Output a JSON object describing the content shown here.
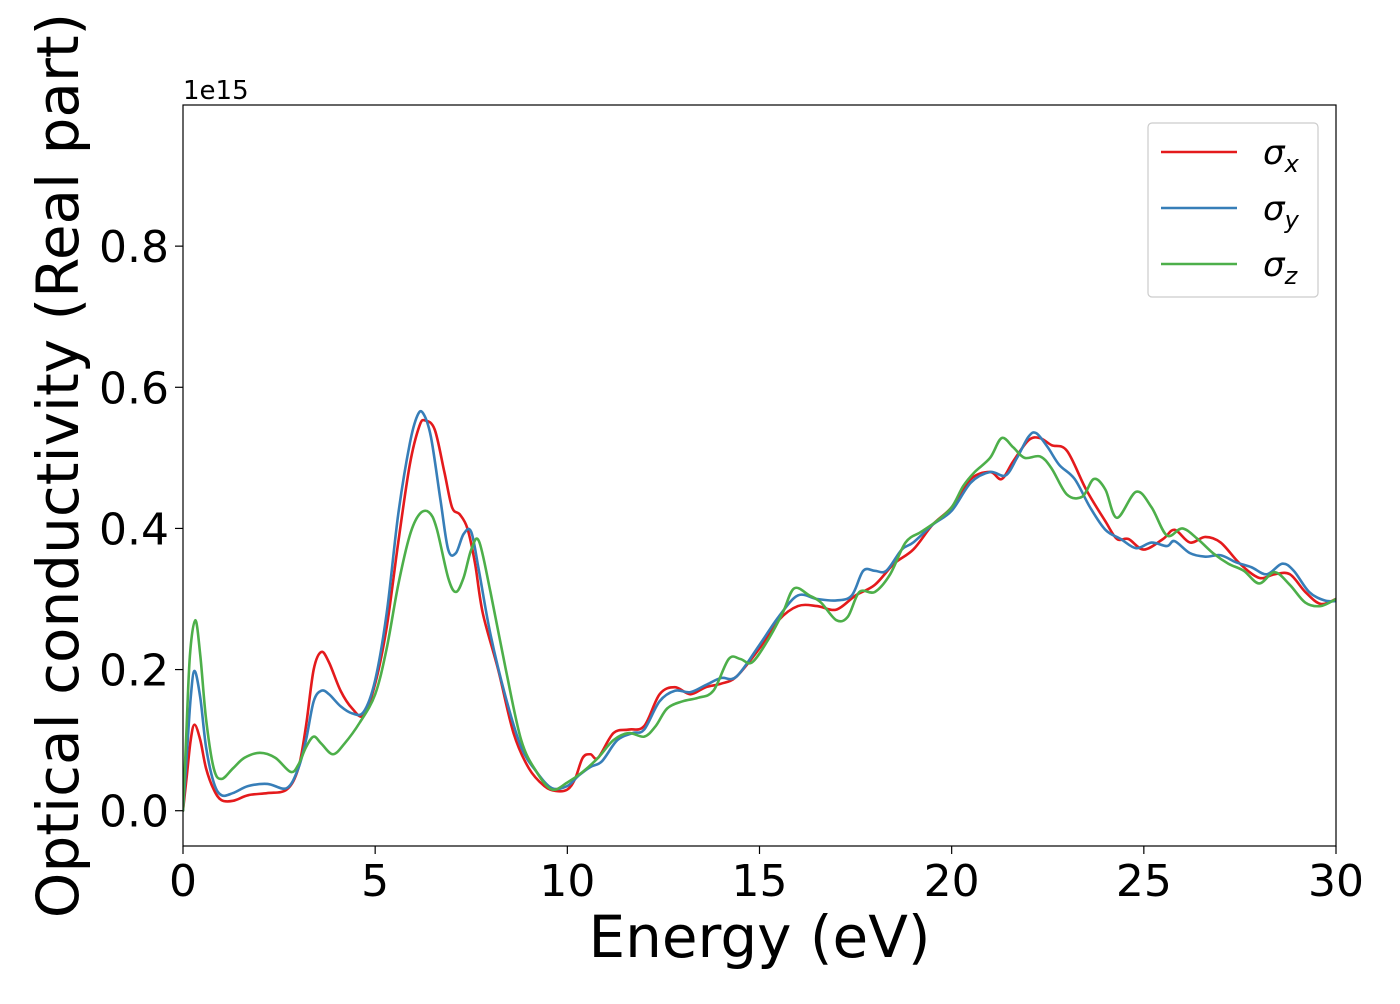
{
  "chart_data": {
    "type": "line",
    "xlabel": "Energy (eV)",
    "ylabel": "Optical conductivity (Real part)",
    "offset_label": "1e15",
    "xlim": [
      0,
      30
    ],
    "ylim": [
      -0.05,
      1.0
    ],
    "xticks": [
      0,
      5,
      10,
      15,
      20,
      25,
      30
    ],
    "xtick_labels": [
      "0",
      "5",
      "10",
      "15",
      "20",
      "25",
      "30"
    ],
    "yticks": [
      0.0,
      0.2,
      0.4,
      0.6,
      0.8
    ],
    "ytick_labels": [
      "0.0",
      "0.2",
      "0.4",
      "0.6",
      "0.8"
    ],
    "grid": false,
    "legend_position": "top-right",
    "series": [
      {
        "name": "σx",
        "label_base": "σ",
        "label_sub": "x",
        "color": "#e41a1c",
        "points": [
          [
            0,
            0.0
          ],
          [
            0.1,
            0.05
          ],
          [
            0.2,
            0.1
          ],
          [
            0.3,
            0.122
          ],
          [
            0.45,
            0.1
          ],
          [
            0.6,
            0.06
          ],
          [
            0.8,
            0.03
          ],
          [
            1.0,
            0.015
          ],
          [
            1.3,
            0.014
          ],
          [
            1.7,
            0.022
          ],
          [
            2.2,
            0.025
          ],
          [
            2.7,
            0.03
          ],
          [
            3.0,
            0.06
          ],
          [
            3.2,
            0.12
          ],
          [
            3.4,
            0.2
          ],
          [
            3.6,
            0.225
          ],
          [
            3.8,
            0.21
          ],
          [
            4.1,
            0.17
          ],
          [
            4.4,
            0.145
          ],
          [
            4.7,
            0.135
          ],
          [
            5.0,
            0.18
          ],
          [
            5.3,
            0.26
          ],
          [
            5.6,
            0.38
          ],
          [
            5.9,
            0.49
          ],
          [
            6.15,
            0.545
          ],
          [
            6.3,
            0.553
          ],
          [
            6.55,
            0.54
          ],
          [
            6.8,
            0.48
          ],
          [
            7.0,
            0.43
          ],
          [
            7.2,
            0.42
          ],
          [
            7.4,
            0.4
          ],
          [
            7.6,
            0.35
          ],
          [
            7.8,
            0.28
          ],
          [
            8.2,
            0.2
          ],
          [
            8.6,
            0.11
          ],
          [
            9.0,
            0.06
          ],
          [
            9.4,
            0.035
          ],
          [
            9.7,
            0.028
          ],
          [
            10.0,
            0.03
          ],
          [
            10.2,
            0.045
          ],
          [
            10.4,
            0.075
          ],
          [
            10.6,
            0.08
          ],
          [
            10.8,
            0.075
          ],
          [
            11.2,
            0.11
          ],
          [
            11.6,
            0.115
          ],
          [
            12.0,
            0.12
          ],
          [
            12.4,
            0.165
          ],
          [
            12.8,
            0.175
          ],
          [
            13.2,
            0.165
          ],
          [
            13.6,
            0.175
          ],
          [
            14.0,
            0.18
          ],
          [
            14.4,
            0.19
          ],
          [
            15.0,
            0.23
          ],
          [
            15.5,
            0.27
          ],
          [
            16.0,
            0.29
          ],
          [
            16.5,
            0.29
          ],
          [
            17.0,
            0.285
          ],
          [
            17.5,
            0.305
          ],
          [
            18.0,
            0.32
          ],
          [
            18.5,
            0.35
          ],
          [
            19.0,
            0.37
          ],
          [
            19.5,
            0.405
          ],
          [
            20.0,
            0.43
          ],
          [
            20.5,
            0.47
          ],
          [
            21.0,
            0.48
          ],
          [
            21.3,
            0.47
          ],
          [
            21.6,
            0.495
          ],
          [
            22.0,
            0.525
          ],
          [
            22.3,
            0.528
          ],
          [
            22.6,
            0.518
          ],
          [
            23.0,
            0.51
          ],
          [
            23.5,
            0.455
          ],
          [
            24.0,
            0.41
          ],
          [
            24.3,
            0.385
          ],
          [
            24.6,
            0.385
          ],
          [
            25.0,
            0.37
          ],
          [
            25.5,
            0.385
          ],
          [
            25.8,
            0.398
          ],
          [
            26.2,
            0.38
          ],
          [
            26.6,
            0.388
          ],
          [
            27.0,
            0.38
          ],
          [
            27.5,
            0.35
          ],
          [
            28.0,
            0.33
          ],
          [
            28.4,
            0.335
          ],
          [
            28.8,
            0.335
          ],
          [
            29.2,
            0.31
          ],
          [
            29.6,
            0.293
          ],
          [
            30.0,
            0.3
          ]
        ]
      },
      {
        "name": "σy",
        "label_base": "σ",
        "label_sub": "y",
        "color": "#377eb8",
        "points": [
          [
            0,
            0.0
          ],
          [
            0.1,
            0.08
          ],
          [
            0.2,
            0.16
          ],
          [
            0.3,
            0.198
          ],
          [
            0.45,
            0.16
          ],
          [
            0.6,
            0.09
          ],
          [
            0.8,
            0.04
          ],
          [
            1.0,
            0.022
          ],
          [
            1.3,
            0.025
          ],
          [
            1.7,
            0.035
          ],
          [
            2.2,
            0.038
          ],
          [
            2.7,
            0.032
          ],
          [
            3.0,
            0.06
          ],
          [
            3.2,
            0.1
          ],
          [
            3.4,
            0.155
          ],
          [
            3.6,
            0.17
          ],
          [
            3.8,
            0.165
          ],
          [
            4.1,
            0.148
          ],
          [
            4.4,
            0.138
          ],
          [
            4.7,
            0.14
          ],
          [
            5.0,
            0.185
          ],
          [
            5.3,
            0.28
          ],
          [
            5.6,
            0.42
          ],
          [
            5.9,
            0.52
          ],
          [
            6.1,
            0.56
          ],
          [
            6.25,
            0.563
          ],
          [
            6.45,
            0.53
          ],
          [
            6.7,
            0.44
          ],
          [
            6.9,
            0.37
          ],
          [
            7.1,
            0.365
          ],
          [
            7.3,
            0.392
          ],
          [
            7.5,
            0.395
          ],
          [
            7.7,
            0.34
          ],
          [
            8.0,
            0.25
          ],
          [
            8.4,
            0.16
          ],
          [
            8.8,
            0.09
          ],
          [
            9.2,
            0.055
          ],
          [
            9.6,
            0.032
          ],
          [
            10.0,
            0.035
          ],
          [
            10.3,
            0.05
          ],
          [
            10.6,
            0.062
          ],
          [
            10.9,
            0.07
          ],
          [
            11.3,
            0.1
          ],
          [
            11.7,
            0.11
          ],
          [
            12.0,
            0.115
          ],
          [
            12.4,
            0.155
          ],
          [
            12.8,
            0.17
          ],
          [
            13.2,
            0.168
          ],
          [
            13.6,
            0.178
          ],
          [
            14.0,
            0.188
          ],
          [
            14.4,
            0.19
          ],
          [
            15.0,
            0.235
          ],
          [
            15.5,
            0.275
          ],
          [
            16.0,
            0.305
          ],
          [
            16.5,
            0.3
          ],
          [
            17.0,
            0.298
          ],
          [
            17.4,
            0.305
          ],
          [
            17.7,
            0.34
          ],
          [
            18.0,
            0.34
          ],
          [
            18.3,
            0.34
          ],
          [
            18.7,
            0.37
          ],
          [
            19.0,
            0.38
          ],
          [
            19.5,
            0.405
          ],
          [
            20.0,
            0.425
          ],
          [
            20.5,
            0.465
          ],
          [
            21.0,
            0.48
          ],
          [
            21.4,
            0.475
          ],
          [
            21.7,
            0.5
          ],
          [
            22.0,
            0.53
          ],
          [
            22.2,
            0.535
          ],
          [
            22.5,
            0.515
          ],
          [
            22.8,
            0.49
          ],
          [
            23.2,
            0.47
          ],
          [
            23.6,
            0.43
          ],
          [
            24.0,
            0.398
          ],
          [
            24.4,
            0.385
          ],
          [
            24.8,
            0.372
          ],
          [
            25.2,
            0.38
          ],
          [
            25.6,
            0.375
          ],
          [
            25.8,
            0.382
          ],
          [
            26.2,
            0.365
          ],
          [
            26.6,
            0.36
          ],
          [
            27.0,
            0.362
          ],
          [
            27.4,
            0.352
          ],
          [
            27.8,
            0.345
          ],
          [
            28.2,
            0.335
          ],
          [
            28.6,
            0.35
          ],
          [
            28.9,
            0.34
          ],
          [
            29.3,
            0.31
          ],
          [
            29.7,
            0.298
          ],
          [
            30.0,
            0.297
          ]
        ]
      },
      {
        "name": "σz",
        "label_base": "σ",
        "label_sub": "z",
        "color": "#4daf4a",
        "points": [
          [
            0,
            0.0
          ],
          [
            0.08,
            0.1
          ],
          [
            0.18,
            0.22
          ],
          [
            0.32,
            0.27
          ],
          [
            0.45,
            0.22
          ],
          [
            0.6,
            0.13
          ],
          [
            0.8,
            0.06
          ],
          [
            1.0,
            0.045
          ],
          [
            1.3,
            0.06
          ],
          [
            1.6,
            0.075
          ],
          [
            2.0,
            0.082
          ],
          [
            2.4,
            0.075
          ],
          [
            2.8,
            0.055
          ],
          [
            3.0,
            0.065
          ],
          [
            3.2,
            0.09
          ],
          [
            3.4,
            0.105
          ],
          [
            3.6,
            0.095
          ],
          [
            3.9,
            0.08
          ],
          [
            4.2,
            0.095
          ],
          [
            4.6,
            0.125
          ],
          [
            5.0,
            0.165
          ],
          [
            5.3,
            0.23
          ],
          [
            5.6,
            0.32
          ],
          [
            5.9,
            0.39
          ],
          [
            6.15,
            0.42
          ],
          [
            6.4,
            0.423
          ],
          [
            6.6,
            0.4
          ],
          [
            6.9,
            0.33
          ],
          [
            7.1,
            0.31
          ],
          [
            7.3,
            0.33
          ],
          [
            7.5,
            0.37
          ],
          [
            7.7,
            0.382
          ],
          [
            8.0,
            0.31
          ],
          [
            8.4,
            0.2
          ],
          [
            8.8,
            0.1
          ],
          [
            9.2,
            0.055
          ],
          [
            9.6,
            0.03
          ],
          [
            10.0,
            0.04
          ],
          [
            10.4,
            0.055
          ],
          [
            10.8,
            0.075
          ],
          [
            11.2,
            0.1
          ],
          [
            11.6,
            0.11
          ],
          [
            12.0,
            0.105
          ],
          [
            12.3,
            0.12
          ],
          [
            12.6,
            0.145
          ],
          [
            13.0,
            0.155
          ],
          [
            13.4,
            0.16
          ],
          [
            13.8,
            0.17
          ],
          [
            14.2,
            0.215
          ],
          [
            14.5,
            0.215
          ],
          [
            14.8,
            0.21
          ],
          [
            15.2,
            0.24
          ],
          [
            15.6,
            0.28
          ],
          [
            15.9,
            0.315
          ],
          [
            16.3,
            0.305
          ],
          [
            16.6,
            0.295
          ],
          [
            17.0,
            0.27
          ],
          [
            17.3,
            0.275
          ],
          [
            17.6,
            0.31
          ],
          [
            18.0,
            0.31
          ],
          [
            18.4,
            0.335
          ],
          [
            18.8,
            0.38
          ],
          [
            19.2,
            0.395
          ],
          [
            19.6,
            0.41
          ],
          [
            20.0,
            0.43
          ],
          [
            20.3,
            0.46
          ],
          [
            20.6,
            0.48
          ],
          [
            21.0,
            0.5
          ],
          [
            21.3,
            0.528
          ],
          [
            21.6,
            0.515
          ],
          [
            21.9,
            0.5
          ],
          [
            22.3,
            0.502
          ],
          [
            22.6,
            0.485
          ],
          [
            23.0,
            0.448
          ],
          [
            23.4,
            0.445
          ],
          [
            23.7,
            0.47
          ],
          [
            24.0,
            0.455
          ],
          [
            24.3,
            0.415
          ],
          [
            24.8,
            0.452
          ],
          [
            25.2,
            0.43
          ],
          [
            25.6,
            0.39
          ],
          [
            26.0,
            0.4
          ],
          [
            26.4,
            0.385
          ],
          [
            26.8,
            0.365
          ],
          [
            27.2,
            0.35
          ],
          [
            27.6,
            0.34
          ],
          [
            28.0,
            0.322
          ],
          [
            28.4,
            0.338
          ],
          [
            28.8,
            0.32
          ],
          [
            29.2,
            0.295
          ],
          [
            29.6,
            0.29
          ],
          [
            30.0,
            0.3
          ]
        ]
      }
    ]
  }
}
